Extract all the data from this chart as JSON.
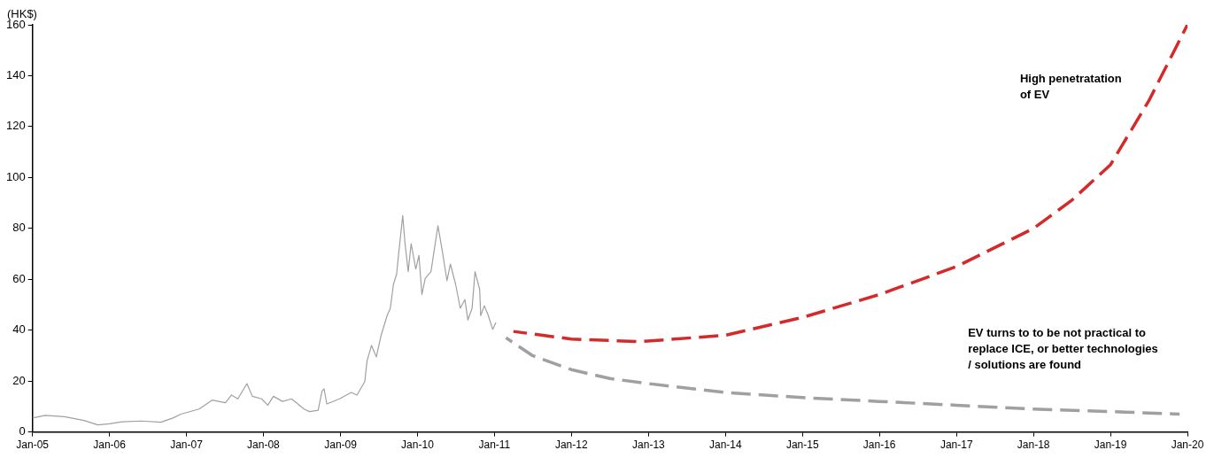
{
  "chart_data": {
    "type": "line",
    "ylabel": "(HK$)",
    "xlim": [
      "2005-01",
      "2020-01"
    ],
    "ylim": [
      0,
      160
    ],
    "xticks": [
      {
        "value": "2005-01",
        "label": "Jan-05"
      },
      {
        "value": "2006-01",
        "label": "Jan-06"
      },
      {
        "value": "2007-01",
        "label": "Jan-07"
      },
      {
        "value": "2008-01",
        "label": "Jan-08"
      },
      {
        "value": "2009-01",
        "label": "Jan-09"
      },
      {
        "value": "2010-01",
        "label": "Jan-10"
      },
      {
        "value": "2011-01",
        "label": "Jan-11"
      },
      {
        "value": "2012-01",
        "label": "Jan-12"
      },
      {
        "value": "2013-01",
        "label": "Jan-13"
      },
      {
        "value": "2014-01",
        "label": "Jan-14"
      },
      {
        "value": "2015-01",
        "label": "Jan-15"
      },
      {
        "value": "2016-01",
        "label": "Jan-16"
      },
      {
        "value": "2017-01",
        "label": "Jan-17"
      },
      {
        "value": "2018-01",
        "label": "Jan-18"
      },
      {
        "value": "2019-01",
        "label": "Jan-19"
      },
      {
        "value": "2020-01",
        "label": "Jan-20"
      }
    ],
    "yticks": [
      0,
      20,
      40,
      60,
      80,
      100,
      120,
      140,
      160
    ],
    "grid": false,
    "legend": false,
    "marker": "none",
    "series": [
      {
        "color": "#a0a0a0",
        "line_style": "solid",
        "x": [
          "2005-01-01",
          "2005-03-02",
          "2005-06-02",
          "2005-09-02",
          "2005-11-07",
          "2006-01-01",
          "2006-03-02",
          "2006-06-02",
          "2006-09-02",
          "2006-10-26",
          "2006-12-06",
          "2007-03-02",
          "2007-05-03",
          "2007-07-05",
          "2007-08-03",
          "2007-09-02",
          "2007-10-15",
          "2007-11-10",
          "2007-12-24",
          "2008-01-22",
          "2008-02-18",
          "2008-04-01",
          "2008-05-14",
          "2008-07-12",
          "2008-08-07",
          "2008-09-17",
          "2008-10-05",
          "2008-10-15",
          "2008-10-28",
          "2008-12-27",
          "2009-02-21",
          "2009-03-20",
          "2009-04-26",
          "2009-05-07",
          "2009-05-28",
          "2009-06-20",
          "2009-07-12",
          "2009-08-11",
          "2009-08-25",
          "2009-09-09",
          "2009-09-24",
          "2009-10-05",
          "2009-10-23",
          "2009-11-03",
          "2009-11-18",
          "2009-12-02",
          "2009-12-24",
          "2010-01-08",
          "2010-01-22",
          "2010-02-07",
          "2010-03-06",
          "2010-04-08",
          "2010-04-29",
          "2010-05-21",
          "2010-06-06",
          "2010-07-01",
          "2010-07-23",
          "2010-08-14",
          "2010-08-28",
          "2010-09-17",
          "2010-10-01",
          "2010-10-23",
          "2010-10-28",
          "2010-11-14",
          "2010-12-02",
          "2010-12-24",
          "2011-01-08"
        ],
        "values": [
          5.5,
          6.5,
          6.0,
          4.5,
          2.8,
          3.2,
          4.0,
          4.3,
          3.8,
          5.4,
          7.0,
          9.0,
          12.5,
          11.5,
          14.5,
          13.0,
          19.0,
          14.0,
          13.0,
          10.5,
          14.0,
          12.0,
          13.0,
          9.0,
          8.0,
          8.5,
          16.0,
          17.0,
          11.0,
          13.0,
          15.5,
          14.5,
          19.8,
          28.0,
          34.0,
          29.5,
          37.8,
          46.0,
          48.5,
          58.0,
          62.0,
          71.0,
          85.0,
          74.0,
          63.0,
          74.0,
          64.0,
          69.4,
          54.0,
          60.4,
          63.0,
          81.0,
          71.0,
          59.4,
          66.0,
          58.0,
          48.6,
          52.0,
          44.0,
          48.6,
          63.0,
          56.0,
          45.7,
          49.6,
          46.0,
          40.3,
          43.0
        ]
      },
      {
        "color": "#d42a2a",
        "line_style": "dashed",
        "x": [
          "2011-04-01",
          "2012-01-01",
          "2012-11-25",
          "2014-01-01",
          "2015-01-01",
          "2016-01-01",
          "2017-01-01",
          "2018-01-01",
          "2018-07-01",
          "2019-01-01",
          "2019-07-01",
          "2020-01-01"
        ],
        "values": [
          39.5,
          36.5,
          35.5,
          38.0,
          45.0,
          54.0,
          65.0,
          80.0,
          91.0,
          105.0,
          130.0,
          160.0
        ]
      },
      {
        "color": "#a0a0a0",
        "line_style": "dashed",
        "x": [
          "2011-02-25",
          "2011-07-01",
          "2012-01-01",
          "2012-07-01",
          "2013-01-01",
          "2014-01-01",
          "2015-01-01",
          "2016-01-01",
          "2017-01-01",
          "2018-01-01",
          "2019-01-01",
          "2019-11-25"
        ],
        "values": [
          37.0,
          30.0,
          24.5,
          21.0,
          19.0,
          15.5,
          13.5,
          12.0,
          10.5,
          9.0,
          8.0,
          7.0
        ]
      }
    ],
    "annotations": [
      "High penetratation\nof EV",
      "EV turns to to be not practical to\nreplace ICE, or better technologies\n/ solutions are found"
    ]
  }
}
